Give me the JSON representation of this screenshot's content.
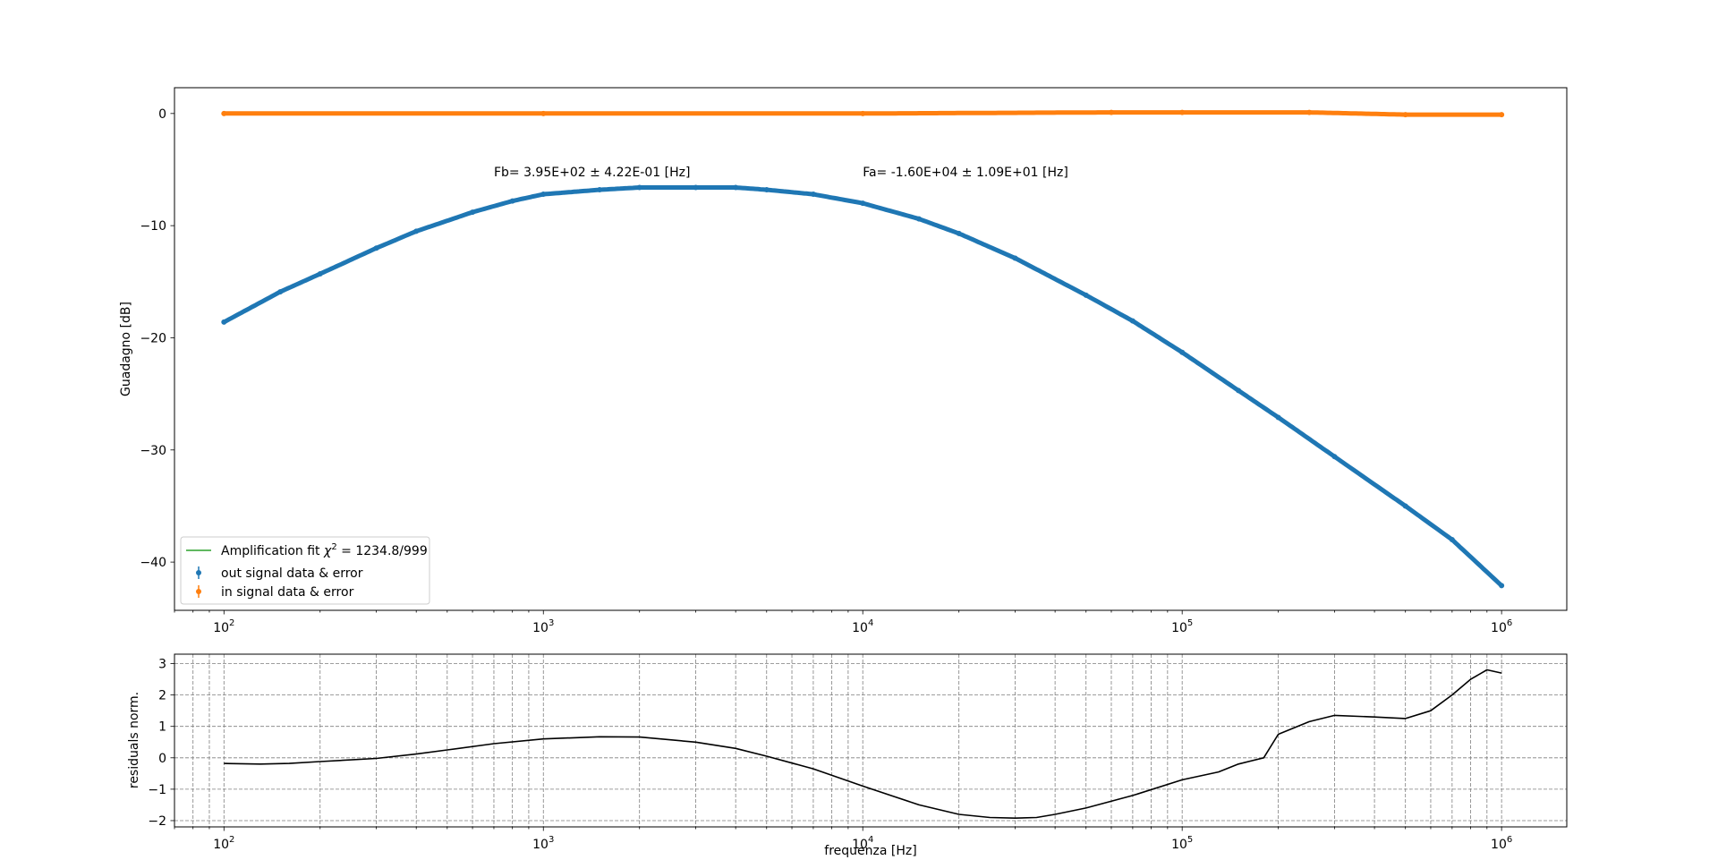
{
  "chart_data": [
    {
      "type": "scatter",
      "panel": "main",
      "xscale": "log",
      "xlim": [
        70,
        1600000
      ],
      "ylim": [
        -44.3,
        2.3
      ],
      "ylabel": "Guadagno [dB]",
      "grid": false,
      "x_ticks": [
        {
          "value": 100,
          "base": "10",
          "exp": "2"
        },
        {
          "value": 1000,
          "base": "10",
          "exp": "3"
        },
        {
          "value": 10000,
          "base": "10",
          "exp": "4"
        },
        {
          "value": 100000,
          "base": "10",
          "exp": "5"
        },
        {
          "value": 1000000,
          "base": "10",
          "exp": "6"
        }
      ],
      "y_ticks": [
        {
          "value": 0,
          "label": "0"
        },
        {
          "value": -10,
          "label": "−10"
        },
        {
          "value": -20,
          "label": "−20"
        },
        {
          "value": -30,
          "label": "−30"
        },
        {
          "value": -40,
          "label": "−40"
        }
      ],
      "series": [
        {
          "name": "out signal data & error",
          "color": "#1f77b4",
          "marker": "errorbar",
          "x": [
            100,
            150,
            200,
            300,
            400,
            600,
            800,
            1000,
            1500,
            2000,
            3000,
            4000,
            5000,
            7000,
            10000,
            15000,
            20000,
            30000,
            50000,
            70000,
            100000,
            150000,
            200000,
            300000,
            500000,
            700000,
            1000000
          ],
          "y": [
            -18.6,
            -15.9,
            -14.3,
            -12.0,
            -10.5,
            -8.8,
            -7.8,
            -7.2,
            -6.8,
            -6.6,
            -6.6,
            -6.6,
            -6.8,
            -7.2,
            -8.0,
            -9.4,
            -10.7,
            -12.9,
            -16.2,
            -18.5,
            -21.3,
            -24.7,
            -27.1,
            -30.6,
            -35.0,
            -38.0,
            -42.1
          ]
        },
        {
          "name": "in signal data & error",
          "color": "#ff7f0e",
          "marker": "errorbar",
          "x": [
            100,
            1000,
            10000,
            60000,
            100000,
            250000,
            500000,
            1000000
          ],
          "y": [
            0.0,
            0.0,
            0.0,
            0.1,
            0.1,
            0.1,
            -0.1,
            -0.1
          ]
        }
      ],
      "legend": {
        "placement": "lower left",
        "entries": [
          {
            "kind": "line",
            "color": "#2ca02c",
            "label": "Amplification fit ",
            "chi_symbol": "χ",
            "chi_exp": "2",
            "chi_value": " = 1234.8/999"
          },
          {
            "kind": "errorbar",
            "color": "#1f77b4",
            "label": "out signal data & error"
          },
          {
            "kind": "errorbar",
            "color": "#ff7f0e",
            "label": "in signal data & error"
          }
        ]
      },
      "annotations": [
        {
          "text": "Fb= 3.95E+02 ± 4.22E-01 [Hz]",
          "x": 700,
          "y": -5.6
        },
        {
          "text": "Fa= -1.60E+04 ± 1.09E+01 [Hz]",
          "x": 10000,
          "y": -5.6
        }
      ]
    },
    {
      "type": "line",
      "panel": "residuals",
      "xscale": "log",
      "xlim": [
        70,
        1600000
      ],
      "ylim": [
        -2.2,
        3.3
      ],
      "xlabel": "frequenza [Hz]",
      "ylabel": "residuals norm.",
      "grid": true,
      "x_ticks": [
        {
          "value": 100,
          "base": "10",
          "exp": "2"
        },
        {
          "value": 1000,
          "base": "10",
          "exp": "3"
        },
        {
          "value": 10000,
          "base": "10",
          "exp": "4"
        },
        {
          "value": 100000,
          "base": "10",
          "exp": "5"
        },
        {
          "value": 1000000,
          "base": "10",
          "exp": "6"
        }
      ],
      "y_ticks": [
        {
          "value": 3,
          "label": "3"
        },
        {
          "value": 2,
          "label": "2"
        },
        {
          "value": 1,
          "label": "1"
        },
        {
          "value": 0,
          "label": "0"
        },
        {
          "value": -1,
          "label": "−1"
        },
        {
          "value": -2,
          "label": "−2"
        }
      ],
      "series": [
        {
          "color": "#000000",
          "x": [
            100,
            130,
            160,
            200,
            300,
            400,
            500,
            700,
            1000,
            1500,
            2000,
            3000,
            4000,
            5000,
            7000,
            10000,
            15000,
            20000,
            25000,
            30000,
            35000,
            40000,
            50000,
            70000,
            100000,
            130000,
            150000,
            180000,
            200000,
            250000,
            300000,
            400000,
            500000,
            600000,
            700000,
            800000,
            900000,
            1000000
          ],
          "y": [
            -0.18,
            -0.2,
            -0.18,
            -0.12,
            -0.02,
            0.12,
            0.25,
            0.45,
            0.6,
            0.67,
            0.66,
            0.5,
            0.3,
            0.05,
            -0.35,
            -0.9,
            -1.5,
            -1.8,
            -1.9,
            -1.92,
            -1.9,
            -1.8,
            -1.6,
            -1.2,
            -0.7,
            -0.45,
            -0.2,
            0.0,
            0.75,
            1.15,
            1.35,
            1.3,
            1.25,
            1.5,
            2.0,
            2.5,
            2.8,
            2.7
          ]
        }
      ]
    }
  ]
}
